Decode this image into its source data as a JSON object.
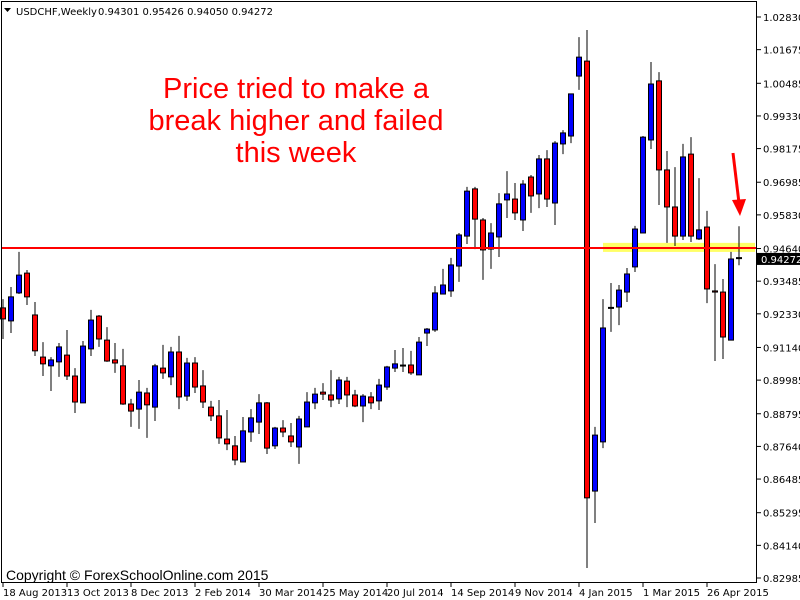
{
  "header": {
    "symbol": "USDCHF,Weekly",
    "ohlc": "0.94301 0.95426 0.94050 0.94272",
    "menu_icon": "triangle-down-icon"
  },
  "annotation": {
    "lines": [
      "Price tried to make a",
      "break higher and failed",
      "this week"
    ],
    "color": "#ff0000"
  },
  "copyright": "Copyright © ForexSchoolOnline.com 2015",
  "current_price_label": "0.94272",
  "colors": {
    "bull": "#0000ff",
    "bear": "#ff0000",
    "level_line": "#ff0000",
    "zone": "#ffff66",
    "background": "#ffffff"
  },
  "chart_data": {
    "type": "candlestick",
    "symbol": "USDCHF",
    "timeframe": "Weekly",
    "ylim": [
      0.82985,
      1.0283
    ],
    "grid": false,
    "y_ticks": [
      "1.02830",
      "1.01675",
      "1.00485",
      "0.99330",
      "0.98175",
      "0.96985",
      "0.95830",
      "0.94640",
      "0.93485",
      "0.92330",
      "0.91140",
      "0.89985",
      "0.88795",
      "0.87640",
      "0.86485",
      "0.85295",
      "0.84140",
      "0.82985"
    ],
    "x_ticks": [
      {
        "label": "18 Aug 2013",
        "index": 0
      },
      {
        "label": "13 Oct 2013",
        "index": 8
      },
      {
        "label": "8 Dec 2013",
        "index": 16
      },
      {
        "label": "2 Feb 2014",
        "index": 24
      },
      {
        "label": "30 Mar 2014",
        "index": 32
      },
      {
        "label": "25 May 2014",
        "index": 40
      },
      {
        "label": "20 Jul 2014",
        "index": 48
      },
      {
        "label": "14 Sep 2014",
        "index": 56
      },
      {
        "label": "9 Nov 2014",
        "index": 64
      },
      {
        "label": "4 Jan 2015",
        "index": 72
      },
      {
        "label": "1 Mar 2015",
        "index": 80
      },
      {
        "label": "26 Apr 2015",
        "index": 88
      }
    ],
    "candles_ohlc": [
      [
        0.9254,
        0.9285,
        0.9144,
        0.9215
      ],
      [
        0.9208,
        0.9328,
        0.9165,
        0.9293
      ],
      [
        0.9307,
        0.9452,
        0.9303,
        0.937
      ],
      [
        0.9377,
        0.9388,
        0.9264,
        0.9293
      ],
      [
        0.9229,
        0.9275,
        0.9084,
        0.9102
      ],
      [
        0.908,
        0.9133,
        0.9013,
        0.9056
      ],
      [
        0.9049,
        0.908,
        0.896,
        0.907
      ],
      [
        0.9063,
        0.913,
        0.901,
        0.9116
      ],
      [
        0.9087,
        0.9176,
        0.8999,
        0.9013
      ],
      [
        0.9013,
        0.9041,
        0.8882,
        0.8921
      ],
      [
        0.8918,
        0.9137,
        0.8918,
        0.9119
      ],
      [
        0.9109,
        0.9247,
        0.9084,
        0.9211
      ],
      [
        0.9225,
        0.9229,
        0.9116,
        0.9144
      ],
      [
        0.914,
        0.9186,
        0.9063,
        0.9066
      ],
      [
        0.907,
        0.913,
        0.9024,
        0.9059
      ],
      [
        0.9049,
        0.9109,
        0.8911,
        0.8914
      ],
      [
        0.8914,
        0.8932,
        0.8833,
        0.8889
      ],
      [
        0.8896,
        0.8999,
        0.8826,
        0.8956
      ],
      [
        0.8953,
        0.8971,
        0.8794,
        0.8911
      ],
      [
        0.8903,
        0.9056,
        0.8854,
        0.9049
      ],
      [
        0.9041,
        0.9123,
        0.9003,
        0.9024
      ],
      [
        0.901,
        0.9116,
        0.8981,
        0.9098
      ],
      [
        0.9098,
        0.9155,
        0.8896,
        0.8939
      ],
      [
        0.8942,
        0.9077,
        0.8925,
        0.9059
      ],
      [
        0.9059,
        0.908,
        0.8953,
        0.8974
      ],
      [
        0.8978,
        0.9034,
        0.89,
        0.8921
      ],
      [
        0.8903,
        0.8925,
        0.8854,
        0.8872
      ],
      [
        0.8872,
        0.8928,
        0.8773,
        0.8794
      ],
      [
        0.879,
        0.8893,
        0.8751,
        0.8773
      ],
      [
        0.8766,
        0.8801,
        0.8698,
        0.8716
      ],
      [
        0.8709,
        0.8868,
        0.8709,
        0.8819
      ],
      [
        0.8815,
        0.8896,
        0.878,
        0.8865
      ],
      [
        0.885,
        0.8949,
        0.8808,
        0.8918
      ],
      [
        0.8918,
        0.8921,
        0.8737,
        0.8758
      ],
      [
        0.8766,
        0.8833,
        0.8755,
        0.8829
      ],
      [
        0.8829,
        0.8857,
        0.8797,
        0.8815
      ],
      [
        0.8801,
        0.8847,
        0.8762,
        0.878
      ],
      [
        0.8762,
        0.8872,
        0.8702,
        0.8861
      ],
      [
        0.8833,
        0.8956,
        0.8833,
        0.8921
      ],
      [
        0.8918,
        0.8971,
        0.8896,
        0.8949
      ],
      [
        0.8956,
        0.8988,
        0.8928,
        0.8949
      ],
      [
        0.8946,
        0.9034,
        0.8903,
        0.8928
      ],
      [
        0.8932,
        0.901,
        0.8914,
        0.8999
      ],
      [
        0.8995,
        0.901,
        0.8903,
        0.8946
      ],
      [
        0.8946,
        0.8964,
        0.8903,
        0.8907
      ],
      [
        0.8907,
        0.8949,
        0.885,
        0.8942
      ],
      [
        0.8939,
        0.8956,
        0.8896,
        0.8918
      ],
      [
        0.8925,
        0.9003,
        0.8893,
        0.8981
      ],
      [
        0.8974,
        0.9049,
        0.8964,
        0.9045
      ],
      [
        0.9041,
        0.9105,
        0.9027,
        0.9056
      ],
      [
        0.905,
        0.9112,
        0.9027,
        0.9049
      ],
      [
        0.9052,
        0.9102,
        0.9017,
        0.9024
      ],
      [
        0.9017,
        0.9151,
        0.9017,
        0.9133
      ],
      [
        0.9165,
        0.9183,
        0.9119,
        0.9179
      ],
      [
        0.9176,
        0.9331,
        0.9169,
        0.9307
      ],
      [
        0.9303,
        0.9392,
        0.9303,
        0.9335
      ],
      [
        0.9314,
        0.9431,
        0.9293,
        0.9406
      ],
      [
        0.9402,
        0.9519,
        0.9346,
        0.9512
      ],
      [
        0.9508,
        0.9682,
        0.948,
        0.9667
      ],
      [
        0.9675,
        0.9682,
        0.9462,
        0.9568
      ],
      [
        0.9565,
        0.9572,
        0.9353,
        0.9459
      ],
      [
        0.9462,
        0.9554,
        0.9392,
        0.9519
      ],
      [
        0.9505,
        0.966,
        0.9434,
        0.9622
      ],
      [
        0.9636,
        0.9738,
        0.9572,
        0.9657
      ],
      [
        0.9639,
        0.9696,
        0.9565,
        0.959
      ],
      [
        0.9565,
        0.9706,
        0.9526,
        0.9692
      ],
      [
        0.9717,
        0.9724,
        0.959,
        0.965
      ],
      [
        0.9657,
        0.9795,
        0.9607,
        0.9781
      ],
      [
        0.9781,
        0.9812,
        0.9611,
        0.9639
      ],
      [
        0.9625,
        0.9844,
        0.9547,
        0.9837
      ],
      [
        0.9834,
        0.9883,
        0.9798,
        0.9873
      ],
      [
        0.9862,
        1.0011,
        0.9837,
        1.0011
      ],
      [
        1.0074,
        1.0212,
        1.0025,
        1.0141
      ],
      [
        1.0127,
        1.0237,
        0.8334,
        0.8582
      ],
      [
        0.8606,
        0.8833,
        0.8493,
        0.8804
      ],
      [
        0.878,
        0.9285,
        0.8758,
        0.9183
      ],
      [
        0.9254,
        0.9342,
        0.9169,
        0.9253
      ],
      [
        0.9257,
        0.9335,
        0.9193,
        0.9317
      ],
      [
        0.931,
        0.9395,
        0.9275,
        0.9374
      ],
      [
        0.9399,
        0.9544,
        0.9381,
        0.9533
      ],
      [
        0.9519,
        0.9862,
        0.9519,
        0.9858
      ],
      [
        0.9848,
        1.0124,
        0.9816,
        1.0046
      ],
      [
        1.0057,
        1.0088,
        0.9618,
        0.9742
      ],
      [
        0.9742,
        0.9809,
        0.9484,
        0.9611
      ],
      [
        0.9611,
        0.9752,
        0.9473,
        0.9508
      ],
      [
        0.9508,
        0.9834,
        0.9494,
        0.9788
      ],
      [
        0.9798,
        0.9858,
        0.9487,
        0.9508
      ],
      [
        0.9498,
        0.9713,
        0.9494,
        0.953
      ],
      [
        0.954,
        0.9597,
        0.9271,
        0.9321
      ],
      [
        0.9314,
        0.9409,
        0.9066,
        0.931
      ],
      [
        0.931,
        0.9356,
        0.9073,
        0.9151
      ],
      [
        0.914,
        0.9452,
        0.914,
        0.9427
      ],
      [
        0.94301,
        0.95426,
        0.9405,
        0.94272
      ]
    ],
    "resistance_level": 0.9466,
    "resistance_zone": [
      0.9452,
      0.9484
    ],
    "last_price": 0.94272
  }
}
